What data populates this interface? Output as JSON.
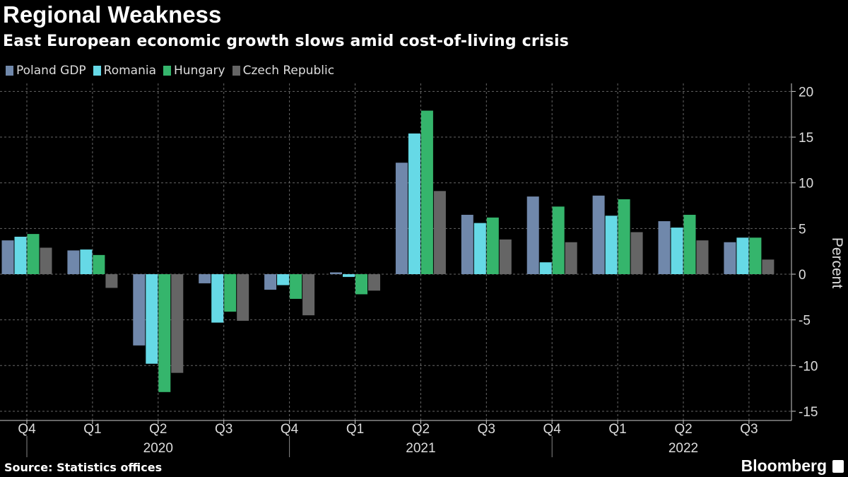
{
  "header": {
    "title": "Regional Weakness",
    "subtitle": "East European economic growth slows amid cost-of-living crisis"
  },
  "footer": {
    "source": "Source: Statistics offices",
    "brand": "Bloomberg"
  },
  "chart_data": {
    "type": "bar",
    "title": "Regional Weakness",
    "subtitle": "East European economic growth slows amid cost-of-living crisis",
    "xlabel": "",
    "ylabel": "Percent",
    "ylim": [
      -15,
      20
    ],
    "yticks": [
      20,
      15,
      10,
      5,
      0,
      -5,
      -10,
      -15
    ],
    "grid": true,
    "legend_position": "top-left",
    "categories": [
      "Q4",
      "Q1",
      "Q2",
      "Q3",
      "Q4",
      "Q1",
      "Q2",
      "Q3",
      "Q4",
      "Q1",
      "Q2",
      "Q3"
    ],
    "year_labels": [
      {
        "label": "2020",
        "center_index": 2
      },
      {
        "label": "2021",
        "center_index": 6
      },
      {
        "label": "2022",
        "center_index": 10
      }
    ],
    "series": [
      {
        "name": "Poland GDP",
        "color": "#7088ab",
        "values": [
          3.7,
          2.6,
          -7.8,
          -1.0,
          -1.7,
          0.2,
          12.2,
          6.5,
          8.5,
          8.6,
          5.8,
          3.5
        ]
      },
      {
        "name": "Romania",
        "color": "#66d9e6",
        "values": [
          4.1,
          2.7,
          -9.8,
          -5.3,
          -1.2,
          -0.3,
          15.4,
          5.6,
          1.3,
          6.4,
          5.1,
          4.0
        ]
      },
      {
        "name": "Hungary",
        "color": "#35b56c",
        "values": [
          4.4,
          2.1,
          -12.9,
          -4.1,
          -2.7,
          -2.2,
          17.9,
          6.2,
          7.4,
          8.2,
          6.5,
          4.0
        ]
      },
      {
        "name": "Czech Republic",
        "color": "#656565",
        "values": [
          2.9,
          -1.5,
          -10.8,
          -5.1,
          -4.5,
          -1.8,
          9.1,
          3.8,
          3.5,
          4.6,
          3.7,
          1.6
        ]
      }
    ]
  }
}
